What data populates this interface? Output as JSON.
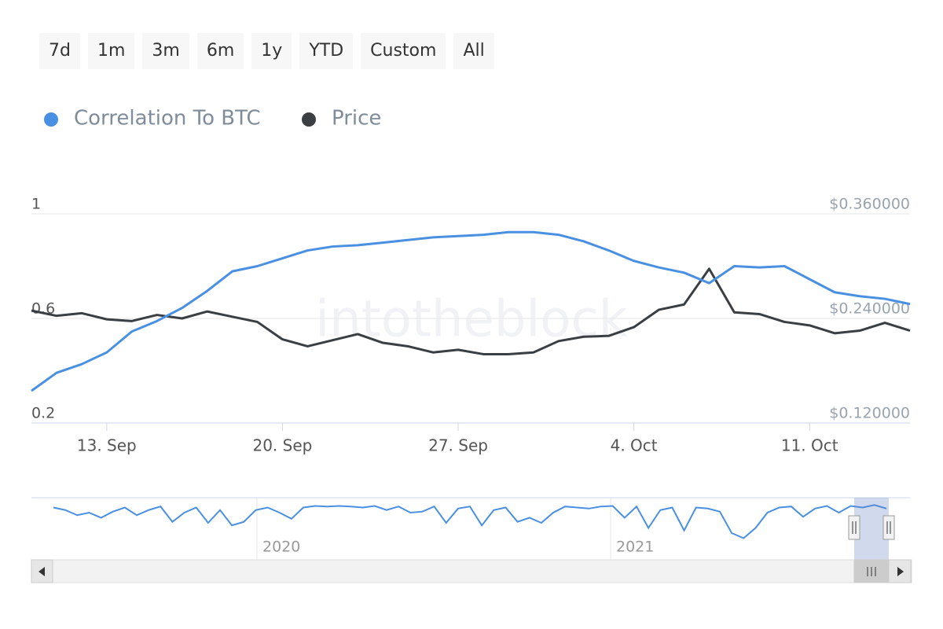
{
  "range_buttons": [
    "7d",
    "1m",
    "3m",
    "6m",
    "1y",
    "YTD",
    "Custom",
    "All"
  ],
  "chart_data": {
    "type": "line",
    "watermark": "intotheblock",
    "categories": [
      null,
      null,
      null,
      "13. Sep",
      null,
      null,
      null,
      null,
      null,
      null,
      "20. Sep",
      null,
      null,
      null,
      null,
      null,
      null,
      "27. Sep",
      null,
      null,
      null,
      null,
      null,
      null,
      "4. Oct",
      null,
      null,
      null,
      null,
      null,
      null,
      "11. Oct",
      null,
      null,
      null,
      null
    ],
    "ylim": [
      0.2,
      1
    ],
    "yticks": [
      0.2,
      0.6,
      1
    ],
    "y2lim": [
      0.12,
      0.36
    ],
    "y2ticks": [
      {
        "value": 0.12,
        "label": "$0.120000"
      },
      {
        "value": 0.24,
        "label": "$0.240000"
      },
      {
        "value": 0.36,
        "label": "$0.360000"
      }
    ],
    "grid": true,
    "legend": "top-left",
    "series": [
      {
        "name": "Correlation To BTC",
        "color": "#4a90e2",
        "values": [
          0.323,
          0.392,
          0.425,
          0.47,
          0.55,
          0.59,
          0.64,
          0.705,
          0.78,
          0.8,
          0.83,
          0.86,
          0.875,
          0.88,
          0.89,
          0.9,
          0.91,
          0.915,
          0.92,
          0.93,
          0.93,
          0.92,
          0.895,
          0.86,
          0.82,
          0.795,
          0.775,
          0.735,
          0.8,
          0.795,
          0.8,
          0.75,
          0.7,
          0.685,
          0.675,
          0.655
        ]
      },
      {
        "name": "Price",
        "color": "#3a3f44",
        "axis": "y2",
        "values": [
          0.249,
          0.243,
          0.246,
          0.239,
          0.237,
          0.244,
          0.24,
          0.248,
          0.242,
          0.236,
          0.216,
          0.208,
          0.215,
          0.222,
          0.212,
          0.208,
          0.201,
          0.204,
          0.199,
          0.199,
          0.201,
          0.214,
          0.219,
          0.22,
          0.23,
          0.25,
          0.256,
          0.297,
          0.247,
          0.245,
          0.236,
          0.232,
          0.223,
          0.226,
          0.235,
          0.226
        ]
      }
    ],
    "navigator": {
      "labels": [
        "2020",
        "2021"
      ],
      "values": [
        0.9,
        0.85,
        0.75,
        0.8,
        0.7,
        0.82,
        0.9,
        0.75,
        0.85,
        0.92,
        0.62,
        0.8,
        0.9,
        0.6,
        0.85,
        0.55,
        0.62,
        0.85,
        0.9,
        0.8,
        0.68,
        0.9,
        0.93,
        0.92,
        0.93,
        0.92,
        0.9,
        0.93,
        0.85,
        0.92,
        0.8,
        0.82,
        0.92,
        0.6,
        0.88,
        0.92,
        0.55,
        0.85,
        0.9,
        0.62,
        0.7,
        0.6,
        0.8,
        0.92,
        0.9,
        0.88,
        0.92,
        0.93,
        0.7,
        0.92,
        0.5,
        0.85,
        0.9,
        0.45,
        0.9,
        0.88,
        0.82,
        0.4,
        0.3,
        0.5,
        0.8,
        0.9,
        0.92,
        0.72,
        0.88,
        0.93,
        0.8,
        0.93,
        0.9,
        0.95,
        0.88
      ]
    }
  }
}
